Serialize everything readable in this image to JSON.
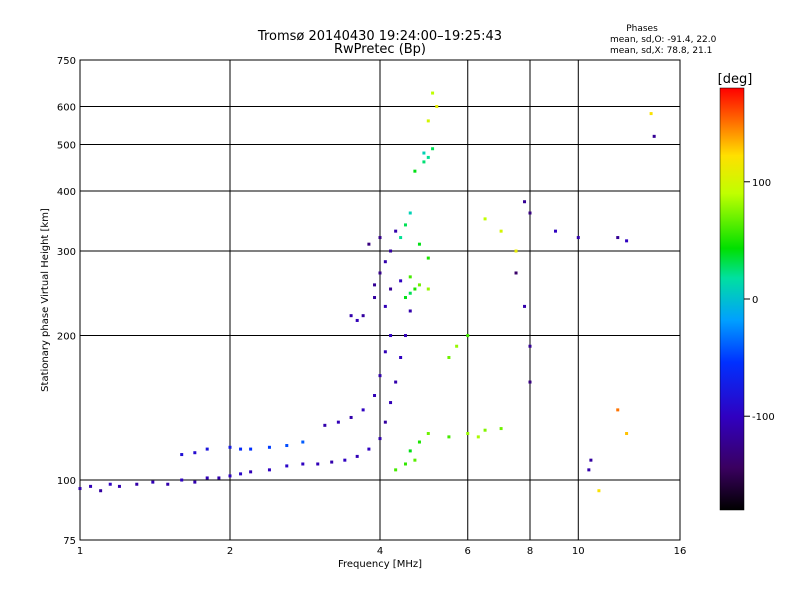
{
  "chart_data": {
    "type": "scatter",
    "title": "Tromsø 20140430 19:24:00–19:25:43",
    "subtitle": "RwPretec (Bp)",
    "stats": {
      "heading": "Phases",
      "line_o": "mean, sd,O: -91.4, 22.0",
      "line_x": "mean, sd,X:  78.8, 21.1"
    },
    "xlabel": "Frequency [MHz]",
    "ylabel": "Stationary phase Virtual Height [km]",
    "x_scale": "log",
    "y_scale": "log",
    "xlim": [
      1,
      16
    ],
    "ylim": [
      75,
      750
    ],
    "x_ticks": [
      1,
      2,
      4,
      6,
      8,
      10,
      16
    ],
    "y_ticks": [
      75,
      100,
      200,
      300,
      400,
      500,
      600,
      750
    ],
    "x_grid": [
      2,
      4,
      6,
      8,
      10
    ],
    "y_grid": [
      100,
      200,
      300,
      400,
      500,
      600
    ],
    "grid": true,
    "colorbar": {
      "label": "[deg]",
      "range": [
        -180,
        180
      ],
      "ticks": [
        100,
        0,
        -100
      ],
      "colormap": "rainbow (black-purple-blue-cyan-green-yellow-red)"
    },
    "series": [
      {
        "points": [
          [
            1.0,
            96,
            -110
          ],
          [
            1.05,
            97,
            -105
          ],
          [
            1.1,
            95,
            -115
          ],
          [
            1.15,
            98,
            -100
          ],
          [
            1.2,
            97,
            -108
          ],
          [
            1.3,
            98,
            -112
          ],
          [
            1.4,
            99,
            -105
          ],
          [
            1.5,
            98,
            -110
          ],
          [
            1.6,
            100,
            -100
          ],
          [
            1.7,
            99,
            -108
          ],
          [
            1.8,
            101,
            -105
          ],
          [
            1.9,
            101,
            -110
          ],
          [
            2.0,
            102,
            -100
          ],
          [
            2.1,
            103,
            -95
          ],
          [
            2.2,
            104,
            -105
          ],
          [
            2.4,
            105,
            -100
          ],
          [
            2.6,
            107,
            -95
          ],
          [
            2.8,
            108,
            -100
          ],
          [
            3.0,
            108,
            -105
          ],
          [
            3.2,
            109,
            -110
          ],
          [
            3.4,
            110,
            -100
          ],
          [
            3.6,
            112,
            -105
          ],
          [
            3.8,
            116,
            -100
          ],
          [
            4.0,
            122,
            -110
          ],
          [
            4.1,
            132,
            -115
          ],
          [
            4.2,
            145,
            -105
          ],
          [
            4.3,
            160,
            -110
          ],
          [
            4.4,
            180,
            -100
          ],
          [
            4.5,
            200,
            -105
          ],
          [
            4.6,
            225,
            -110
          ],
          [
            1.6,
            113,
            -85
          ],
          [
            1.7,
            114,
            -90
          ],
          [
            1.8,
            116,
            -80
          ],
          [
            2.0,
            117,
            -75
          ],
          [
            2.1,
            116,
            -60
          ],
          [
            2.2,
            116,
            -55
          ],
          [
            2.4,
            117,
            -50
          ],
          [
            2.6,
            118,
            -45
          ],
          [
            2.8,
            120,
            -40
          ],
          [
            3.1,
            130,
            -110
          ],
          [
            3.3,
            132,
            -105
          ],
          [
            3.5,
            135,
            -110
          ],
          [
            3.7,
            140,
            -100
          ],
          [
            3.9,
            150,
            -105
          ],
          [
            4.0,
            165,
            -110
          ],
          [
            4.1,
            185,
            -105
          ],
          [
            4.2,
            200,
            -100
          ],
          [
            3.9,
            255,
            -120
          ],
          [
            4.0,
            270,
            -125
          ],
          [
            4.1,
            285,
            -110
          ],
          [
            4.2,
            300,
            -115
          ],
          [
            3.8,
            310,
            -130
          ],
          [
            4.0,
            320,
            -125
          ],
          [
            4.3,
            330,
            -110
          ],
          [
            3.9,
            240,
            -115
          ],
          [
            4.1,
            230,
            -105
          ],
          [
            4.2,
            250,
            -120
          ],
          [
            4.4,
            260,
            -100
          ],
          [
            3.5,
            220,
            -110
          ],
          [
            3.6,
            215,
            -105
          ],
          [
            3.7,
            220,
            -115
          ],
          [
            4.3,
            105,
            60
          ],
          [
            4.5,
            108,
            55
          ],
          [
            4.7,
            110,
            65
          ],
          [
            4.6,
            115,
            40
          ],
          [
            4.8,
            120,
            50
          ],
          [
            5.0,
            125,
            70
          ],
          [
            5.5,
            123,
            60
          ],
          [
            6.0,
            125,
            80
          ],
          [
            6.5,
            127,
            75
          ],
          [
            7.0,
            128,
            70
          ],
          [
            6.3,
            123,
            85
          ],
          [
            4.5,
            240,
            40
          ],
          [
            4.6,
            245,
            30
          ],
          [
            4.7,
            250,
            50
          ],
          [
            4.8,
            255,
            70
          ],
          [
            4.6,
            265,
            60
          ],
          [
            5.0,
            250,
            80
          ],
          [
            4.4,
            320,
            20
          ],
          [
            4.5,
            340,
            30
          ],
          [
            4.6,
            360,
            10
          ],
          [
            4.8,
            310,
            40
          ],
          [
            5.0,
            290,
            50
          ],
          [
            4.9,
            480,
            10
          ],
          [
            5.0,
            470,
            20
          ],
          [
            5.1,
            490,
            30
          ],
          [
            4.7,
            440,
            40
          ],
          [
            4.9,
            460,
            25
          ],
          [
            5.0,
            560,
            100
          ],
          [
            5.2,
            600,
            110
          ],
          [
            5.1,
            640,
            90
          ],
          [
            5.5,
            180,
            70
          ],
          [
            5.7,
            190,
            80
          ],
          [
            6.0,
            200,
            60
          ],
          [
            6.5,
            350,
            90
          ],
          [
            7.0,
            330,
            100
          ],
          [
            7.5,
            300,
            110
          ],
          [
            7.8,
            380,
            -120
          ],
          [
            8.0,
            360,
            -130
          ],
          [
            7.8,
            230,
            -110
          ],
          [
            8.0,
            190,
            -120
          ],
          [
            7.5,
            270,
            -140
          ],
          [
            8.0,
            160,
            -130
          ],
          [
            9.0,
            330,
            -100
          ],
          [
            10.0,
            320,
            -110
          ],
          [
            12.0,
            320,
            -120
          ],
          [
            12.5,
            315,
            -100
          ],
          [
            14.0,
            580,
            120
          ],
          [
            14.2,
            520,
            -120
          ],
          [
            12.0,
            140,
            150
          ],
          [
            12.5,
            125,
            130
          ],
          [
            11.0,
            95,
            120
          ],
          [
            10.5,
            105,
            -110
          ],
          [
            10.6,
            110,
            -115
          ]
        ]
      }
    ]
  }
}
